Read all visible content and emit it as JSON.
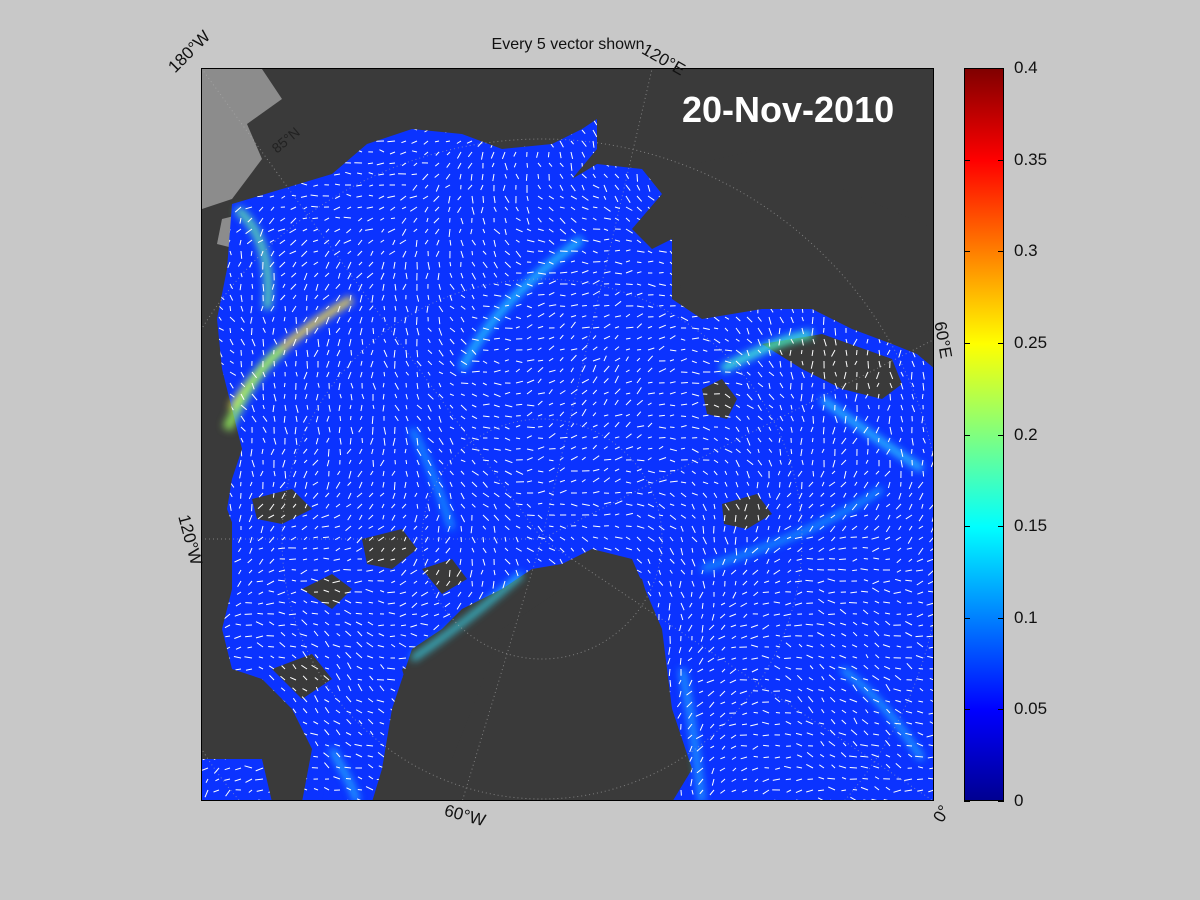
{
  "figure": {
    "title": "Every 5 vector shown",
    "date": "20-Nov-2010"
  },
  "map": {
    "projection": "north polar stereographic",
    "longitude_labels": [
      "180°W",
      "120°E",
      "60°E",
      "0°",
      "60°W",
      "120°W"
    ],
    "latitude_labels": [
      "85°N"
    ],
    "colors": {
      "land": "#3a3a3a",
      "ice_shelf": "#8c8c8c",
      "ocean_low": "#0a2cff",
      "ocean_high": "#ffff00",
      "vectors": "#ffffff"
    }
  },
  "colorbar": {
    "colormap": "jet",
    "range": [
      0,
      0.4
    ],
    "ticks": [
      "0",
      "0.05",
      "0.1",
      "0.15",
      "0.2",
      "0.25",
      "0.3",
      "0.35",
      "0.4"
    ]
  }
}
